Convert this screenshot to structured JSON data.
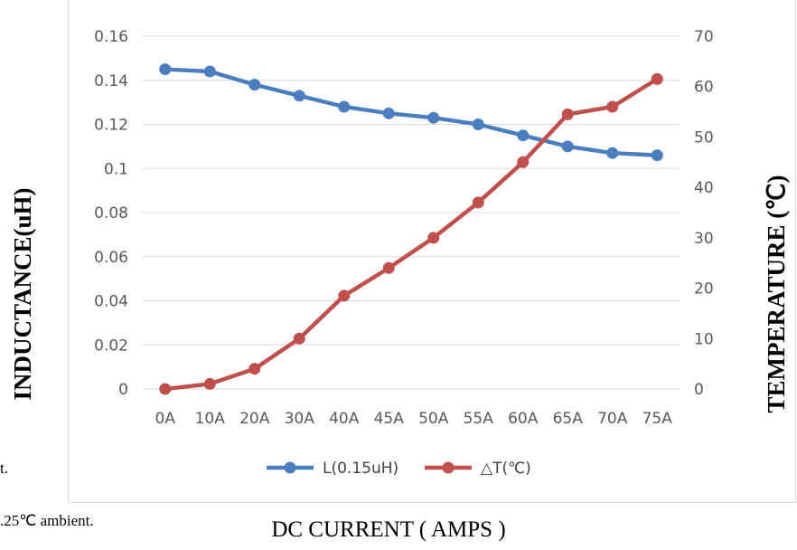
{
  "chart_data": {
    "type": "line",
    "categories": [
      "0A",
      "10A",
      "20A",
      "30A",
      "40A",
      "45A",
      "50A",
      "55A",
      "60A",
      "65A",
      "70A",
      "75A"
    ],
    "series": [
      {
        "name": "L(0.15uH)",
        "axis": "left",
        "color": "#4a7ebf",
        "values": [
          0.145,
          0.144,
          0.138,
          0.133,
          0.128,
          0.125,
          0.123,
          0.12,
          0.115,
          0.11,
          0.107,
          0.106
        ]
      },
      {
        "name": "△T(℃)",
        "axis": "right",
        "color": "#c0504d",
        "values": [
          0,
          1,
          4,
          10,
          18.5,
          24,
          30,
          37,
          45,
          54.5,
          56,
          61.5
        ]
      }
    ],
    "y_left": {
      "label": "INDUCTANCE(uH)",
      "min": 0,
      "max": 0.16,
      "ticks": [
        "0",
        "0.02",
        "0.04",
        "0.06",
        "0.08",
        "0.1",
        "0.12",
        "0.14",
        "0.16"
      ]
    },
    "y_right": {
      "label": "TEMPERATURE (℃)",
      "min": 0,
      "max": 70,
      "ticks": [
        "0",
        "10",
        "20",
        "30",
        "40",
        "50",
        "60",
        "70"
      ]
    },
    "xlabel": "DC CURRENT ( AMPS )",
    "grid": true,
    "legend": "bottom"
  },
  "notes": [
    "t.",
    ".25℃ ambient."
  ]
}
